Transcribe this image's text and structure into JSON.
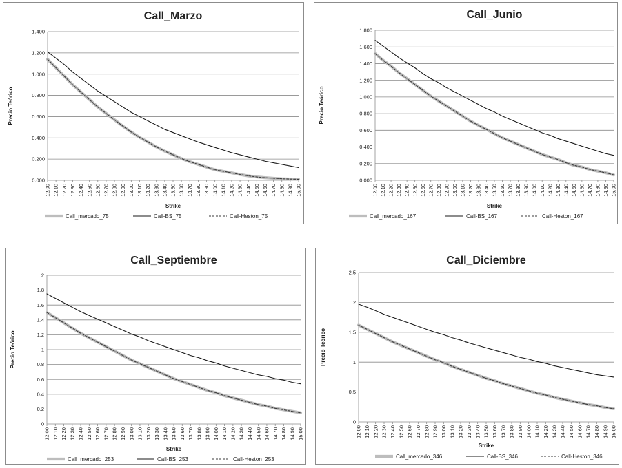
{
  "strikes": [
    "12.00",
    "12.10",
    "12.20",
    "12.30",
    "12.40",
    "12.50",
    "12.60",
    "12.70",
    "12.80",
    "12.90",
    "13.00",
    "13.10",
    "13.20",
    "13.30",
    "13.40",
    "13.50",
    "13.60",
    "13.70",
    "13.80",
    "13.90",
    "14.00",
    "14.10",
    "14.20",
    "14.30",
    "14.40",
    "14.50",
    "14.60",
    "14.70",
    "14.80",
    "14.90",
    "15.00"
  ],
  "chart_data": [
    {
      "type": "line",
      "title": "Call_Marzo",
      "xlabel": "Strike",
      "ylabel": "Precio Teórico",
      "ylim": [
        0,
        1.4
      ],
      "yticks": [
        "0.000",
        "0.200",
        "0.400",
        "0.600",
        "0.800",
        "1.000",
        "1.200",
        "1.400"
      ],
      "grid": true,
      "legend": "bottom",
      "series": [
        {
          "name": "Call_mercado_75",
          "values": [
            1.14,
            1.06,
            0.98,
            0.9,
            0.83,
            0.76,
            0.69,
            0.63,
            0.57,
            0.51,
            0.455,
            0.405,
            0.36,
            0.315,
            0.275,
            0.24,
            0.205,
            0.175,
            0.15,
            0.125,
            0.1,
            0.085,
            0.07,
            0.055,
            0.042,
            0.032,
            0.025,
            0.02,
            0.015,
            0.012,
            0.01
          ]
        },
        {
          "name": "Call-BS_75",
          "values": [
            1.21,
            1.15,
            1.09,
            1.02,
            0.96,
            0.9,
            0.84,
            0.79,
            0.74,
            0.69,
            0.64,
            0.6,
            0.56,
            0.52,
            0.48,
            0.45,
            0.42,
            0.39,
            0.36,
            0.335,
            0.31,
            0.285,
            0.26,
            0.24,
            0.22,
            0.2,
            0.18,
            0.165,
            0.15,
            0.135,
            0.12
          ]
        },
        {
          "name": "Call-Heston_75",
          "values": [
            1.14,
            1.06,
            0.98,
            0.9,
            0.83,
            0.76,
            0.69,
            0.63,
            0.57,
            0.51,
            0.455,
            0.405,
            0.36,
            0.315,
            0.275,
            0.24,
            0.205,
            0.175,
            0.15,
            0.125,
            0.1,
            0.085,
            0.07,
            0.055,
            0.042,
            0.032,
            0.025,
            0.02,
            0.015,
            0.012,
            0.01
          ]
        }
      ]
    },
    {
      "type": "line",
      "title": "Call_Junio",
      "xlabel": "Strike",
      "ylabel": "Precio Teórico",
      "ylim": [
        0,
        1.8
      ],
      "yticks": [
        "0.000",
        "0.200",
        "0.400",
        "0.600",
        "0.800",
        "1.000",
        "1.200",
        "1.400",
        "1.600",
        "1.800"
      ],
      "grid": true,
      "legend": "bottom",
      "series": [
        {
          "name": "Call_mercado_167",
          "values": [
            1.52,
            1.44,
            1.37,
            1.29,
            1.22,
            1.15,
            1.08,
            1.01,
            0.95,
            0.89,
            0.83,
            0.77,
            0.71,
            0.66,
            0.61,
            0.56,
            0.51,
            0.47,
            0.43,
            0.39,
            0.35,
            0.31,
            0.28,
            0.25,
            0.21,
            0.18,
            0.16,
            0.13,
            0.11,
            0.09,
            0.065
          ]
        },
        {
          "name": "Call-BS_167",
          "values": [
            1.68,
            1.61,
            1.54,
            1.47,
            1.41,
            1.35,
            1.28,
            1.22,
            1.17,
            1.11,
            1.06,
            1.01,
            0.96,
            0.91,
            0.86,
            0.82,
            0.77,
            0.73,
            0.69,
            0.65,
            0.61,
            0.57,
            0.54,
            0.5,
            0.47,
            0.44,
            0.41,
            0.38,
            0.35,
            0.32,
            0.3
          ]
        },
        {
          "name": "Call-Heston_167",
          "values": [
            1.52,
            1.44,
            1.37,
            1.29,
            1.22,
            1.15,
            1.08,
            1.01,
            0.95,
            0.89,
            0.83,
            0.77,
            0.71,
            0.66,
            0.61,
            0.56,
            0.51,
            0.47,
            0.43,
            0.39,
            0.35,
            0.31,
            0.28,
            0.25,
            0.21,
            0.18,
            0.16,
            0.13,
            0.11,
            0.09,
            0.065
          ]
        }
      ]
    },
    {
      "type": "line",
      "title": "Call_Septiembre",
      "xlabel": "Strike",
      "ylabel": "Precio Teórico",
      "ylim": [
        0,
        2
      ],
      "yticks": [
        "0",
        "0.2",
        "0.4",
        "0.6",
        "0.8",
        "1",
        "1.2",
        "1.4",
        "1.6",
        "1.8",
        "2"
      ],
      "grid": true,
      "legend": "bottom",
      "series": [
        {
          "name": "Call_mercado_253",
          "values": [
            1.5,
            1.43,
            1.36,
            1.29,
            1.22,
            1.16,
            1.1,
            1.04,
            0.98,
            0.92,
            0.86,
            0.81,
            0.76,
            0.71,
            0.66,
            0.61,
            0.57,
            0.53,
            0.49,
            0.45,
            0.42,
            0.38,
            0.35,
            0.32,
            0.29,
            0.26,
            0.24,
            0.21,
            0.19,
            0.17,
            0.15
          ]
        },
        {
          "name": "Call-BS_253",
          "values": [
            1.75,
            1.69,
            1.63,
            1.57,
            1.51,
            1.46,
            1.41,
            1.36,
            1.31,
            1.26,
            1.21,
            1.17,
            1.12,
            1.08,
            1.04,
            1.0,
            0.96,
            0.92,
            0.89,
            0.85,
            0.82,
            0.78,
            0.75,
            0.72,
            0.69,
            0.66,
            0.64,
            0.61,
            0.59,
            0.56,
            0.54
          ]
        },
        {
          "name": "Call-Heston_253",
          "values": [
            1.5,
            1.43,
            1.36,
            1.29,
            1.22,
            1.16,
            1.1,
            1.04,
            0.98,
            0.92,
            0.86,
            0.81,
            0.76,
            0.71,
            0.66,
            0.61,
            0.57,
            0.53,
            0.49,
            0.45,
            0.42,
            0.38,
            0.35,
            0.32,
            0.29,
            0.26,
            0.24,
            0.21,
            0.19,
            0.17,
            0.15
          ]
        }
      ]
    },
    {
      "type": "line",
      "title": "Call_Diciembre",
      "xlabel": "Strike",
      "ylabel": "Precio Teórico",
      "ylim": [
        0,
        2.5
      ],
      "yticks": [
        "0",
        "0.5",
        "1",
        "1.5",
        "2",
        "2.5"
      ],
      "grid": true,
      "legend": "bottom",
      "series": [
        {
          "name": "Call_mercado_346",
          "values": [
            1.62,
            1.55,
            1.48,
            1.41,
            1.34,
            1.28,
            1.22,
            1.16,
            1.1,
            1.04,
            0.99,
            0.93,
            0.88,
            0.83,
            0.78,
            0.73,
            0.69,
            0.64,
            0.6,
            0.56,
            0.52,
            0.48,
            0.45,
            0.41,
            0.38,
            0.35,
            0.32,
            0.29,
            0.27,
            0.24,
            0.22
          ]
        },
        {
          "name": "Call-BS_346",
          "values": [
            1.97,
            1.92,
            1.86,
            1.8,
            1.75,
            1.7,
            1.65,
            1.6,
            1.55,
            1.5,
            1.46,
            1.41,
            1.37,
            1.32,
            1.28,
            1.24,
            1.2,
            1.16,
            1.12,
            1.08,
            1.05,
            1.01,
            0.98,
            0.94,
            0.91,
            0.88,
            0.85,
            0.82,
            0.79,
            0.77,
            0.75
          ]
        },
        {
          "name": "Call-Heston_346",
          "values": [
            1.62,
            1.55,
            1.48,
            1.41,
            1.34,
            1.28,
            1.22,
            1.16,
            1.1,
            1.04,
            0.99,
            0.93,
            0.88,
            0.83,
            0.78,
            0.73,
            0.69,
            0.64,
            0.6,
            0.56,
            0.52,
            0.48,
            0.45,
            0.41,
            0.38,
            0.35,
            0.32,
            0.29,
            0.27,
            0.24,
            0.22
          ]
        }
      ]
    }
  ],
  "styles": {
    "market_color": "#bdbdbd",
    "bs_color": "#1a1a1a",
    "heston_color": "#3a3a3a",
    "grid_color": "#8c8c8c",
    "frame_color": "#8c8c8c"
  }
}
